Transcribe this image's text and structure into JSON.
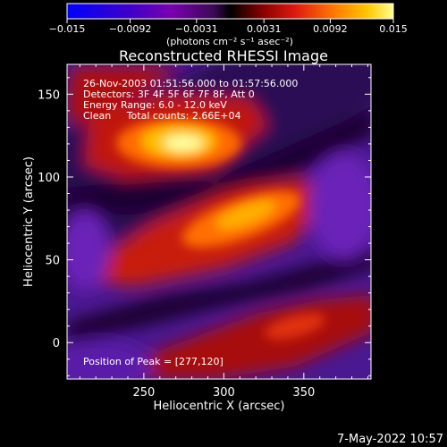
{
  "chart_data": {
    "type": "heatmap",
    "title": "Reconstructed RHESSI Image",
    "xlabel": "Heliocentric X (arcsec)",
    "ylabel": "Heliocentric Y (arcsec)",
    "xlim": [
      202,
      392
    ],
    "ylim": [
      -22,
      168
    ],
    "x_ticks": [
      250,
      300,
      350
    ],
    "y_ticks": [
      0,
      50,
      100,
      150
    ],
    "colormap": [
      "#0000ff",
      "#3a00cc",
      "#7a00b0",
      "#5c1a9a",
      "#000000",
      "#7a0000",
      "#d41010",
      "#ff6a00",
      "#ffc000",
      "#ffff80"
    ],
    "colorbar": {
      "range": [
        -0.015,
        0.015
      ],
      "ticks": [
        "−0.015",
        "−0.0092",
        "−0.0031",
        "0.0031",
        "0.0092",
        "0.015"
      ],
      "unit_label": "(photons cm⁻² s⁻¹ asec⁻²)"
    },
    "annotations": [
      "26-Nov-2003 01:51:56.000 to 01:57:56.000",
      "Detectors: 3F 4F 5F 6F 7F 8F, Att 0",
      "Energy Range: 6.0 - 12.0 keV",
      "Clean     Total counts: 2.66E+04"
    ],
    "peak_text": "Position of Peak = [277,120]",
    "peak": [
      277,
      120
    ]
  },
  "footer": {
    "date": "7-May-2022 10:57"
  }
}
